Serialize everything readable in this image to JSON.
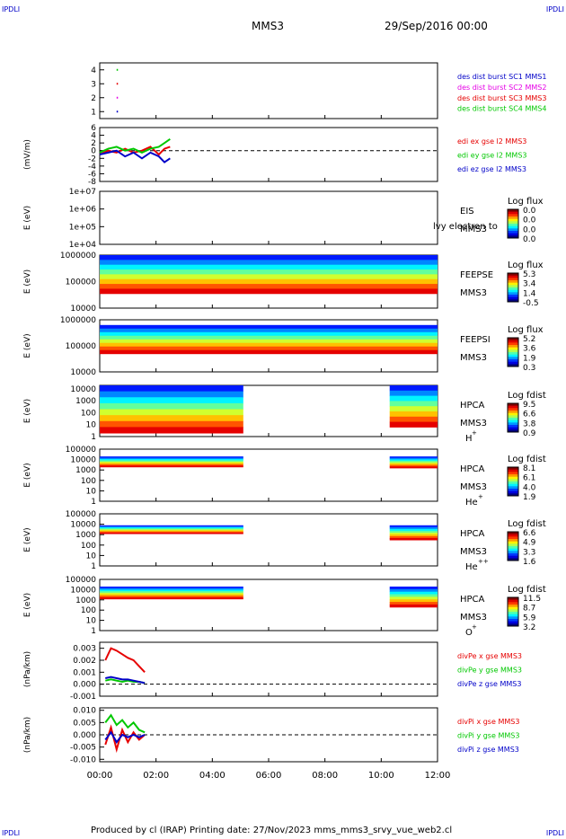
{
  "corners": {
    "top_left": "IPDLI",
    "top_right": "IPDLI",
    "bottom_left": "IPDLI",
    "bottom_right": "IPDLI"
  },
  "header": {
    "title": "MMS3",
    "date": "29/Sep/2016 00:00"
  },
  "footer": "Produced by cl (IRAP)   Printing date: 27/Nov/2023   mms_mms3_srvy_vue_web2.cl",
  "x_axis": {
    "ticks": [
      "00:00",
      "02:00",
      "04:00",
      "06:00",
      "08:00",
      "10:00",
      "12:00"
    ],
    "range_hours": [
      0,
      12
    ]
  },
  "chart_data": [
    {
      "type": "line",
      "panel": "des-dist-burst",
      "ylim": [
        0.5,
        4.5
      ],
      "yticks": [
        "4",
        "3",
        "2",
        "1"
      ],
      "ytick_values": [
        4,
        3,
        2,
        1
      ],
      "ylabel": "",
      "series": [
        {
          "name": "des dist burst SC1 MMS1",
          "color": "#0000c8",
          "x": [
            0.6
          ],
          "y": [
            1
          ]
        },
        {
          "name": "des dist burst SC2 MMS2",
          "color": "#e600e6",
          "x": [
            0.6
          ],
          "y": [
            2
          ]
        },
        {
          "name": "des dist burst SC3 MMS3",
          "color": "#e60000",
          "x": [
            0.6
          ],
          "y": [
            3
          ]
        },
        {
          "name": "des dist burst SC4 MMS4",
          "color": "#00c800",
          "x": [
            0.6
          ],
          "y": [
            4
          ]
        }
      ],
      "grid": false
    },
    {
      "type": "line",
      "panel": "edi",
      "ylabel": "(mV/m)",
      "ylim": [
        -8,
        6
      ],
      "yticks": [
        "6",
        "4",
        "2",
        "0",
        "-2",
        "-4",
        "-6",
        "-8"
      ],
      "ytick_values": [
        6,
        4,
        2,
        0,
        -2,
        -4,
        -6,
        -8
      ],
      "series": [
        {
          "name": "edi ex gse l2 MMS3",
          "color": "#e60000",
          "x": [
            0,
            0.3,
            0.6,
            0.9,
            1.2,
            1.5,
            1.8,
            2.1,
            2.3,
            2.5
          ],
          "y": [
            -1,
            0,
            -0.5,
            0.5,
            -0.5,
            0,
            1,
            -1,
            0.5,
            1
          ]
        },
        {
          "name": "edi ey gse l2 MMS3",
          "color": "#00c800",
          "x": [
            0,
            0.3,
            0.6,
            0.9,
            1.2,
            1.5,
            1.8,
            2.1,
            2.3,
            2.5
          ],
          "y": [
            -0.5,
            0.5,
            1,
            0,
            0.5,
            -0.5,
            0.5,
            1,
            2,
            3
          ]
        },
        {
          "name": "edi ez gse l2 MMS3",
          "color": "#0000c8",
          "x": [
            0,
            0.3,
            0.6,
            0.9,
            1.2,
            1.5,
            1.8,
            2.1,
            2.3,
            2.5
          ],
          "y": [
            -1,
            -0.5,
            0,
            -1.5,
            -0.5,
            -2,
            -0.5,
            -1.5,
            -3,
            -2
          ]
        }
      ],
      "reference_line": 0
    },
    {
      "type": "heatmap",
      "panel": "EIS",
      "ylabel": "E (eV)",
      "yticks": [
        "1e+07",
        "1e+06",
        "1e+05",
        "1e+04"
      ],
      "ytick_values": [
        7,
        6,
        5,
        4
      ],
      "ylim_log10": [
        4,
        7
      ],
      "right_labels": [
        "EIS",
        "MMS3"
      ],
      "overlay_text": "lvy electron to",
      "colorbar": {
        "title": "Log flux",
        "values": [
          "0.0",
          "0.0",
          "0.0",
          "0.0"
        ]
      },
      "blocks": []
    },
    {
      "type": "heatmap",
      "panel": "FEEPSE",
      "ylabel": "E (eV)",
      "yticks": [
        "1000000",
        "100000",
        "10000"
      ],
      "ytick_values": [
        6,
        5,
        4
      ],
      "ylim_log10": [
        4,
        6
      ],
      "right_labels": [
        "FEEPSE",
        "MMS3"
      ],
      "colorbar": {
        "title": "Log flux",
        "values": [
          "5.3",
          "3.4",
          "1.4",
          "-0.5"
        ]
      },
      "blocks": [
        {
          "x0": 0,
          "x1": 12,
          "e_lo": 4.55,
          "e_hi": 6.0
        }
      ]
    },
    {
      "type": "heatmap",
      "panel": "FEEPSI",
      "ylabel": "E (eV)",
      "yticks": [
        "1000000",
        "100000",
        "10000"
      ],
      "ytick_values": [
        6,
        5,
        4
      ],
      "ylim_log10": [
        4,
        6
      ],
      "right_labels": [
        "FEEPSI",
        "MMS3"
      ],
      "colorbar": {
        "title": "Log flux",
        "values": [
          "5.2",
          "3.6",
          "1.9",
          "0.3"
        ]
      },
      "blocks": [
        {
          "x0": 0,
          "x1": 12,
          "e_lo": 4.7,
          "e_hi": 5.8
        }
      ]
    },
    {
      "type": "heatmap",
      "panel": "HPCA-H+",
      "ylabel": "E (eV)",
      "yticks": [
        "10000",
        "1000",
        "100",
        "10",
        "1"
      ],
      "ytick_values": [
        4,
        3,
        2,
        1,
        0
      ],
      "ylim_log10": [
        0,
        4.3
      ],
      "right_labels": [
        "HPCA",
        "MMS3"
      ],
      "species": "H",
      "species_sup": "+",
      "colorbar": {
        "title": "Log fdist",
        "values": [
          "9.5",
          "6.6",
          "3.8",
          "0.9"
        ]
      },
      "blocks": [
        {
          "x0": 0,
          "x1": 5.1,
          "e_lo": 0.3,
          "e_hi": 4.3
        },
        {
          "x0": 10.3,
          "x1": 12,
          "e_lo": 0.8,
          "e_hi": 4.3
        }
      ]
    },
    {
      "type": "heatmap",
      "panel": "HPCA-He+",
      "ylabel": "E (eV)",
      "yticks": [
        "100000",
        "10000",
        "1000",
        "100",
        "10",
        "1"
      ],
      "ytick_values": [
        5,
        4,
        3,
        2,
        1,
        0
      ],
      "ylim_log10": [
        0,
        5
      ],
      "right_labels": [
        "HPCA",
        "MMS3"
      ],
      "species": "He",
      "species_sup": "+",
      "colorbar": {
        "title": "Log fdist",
        "values": [
          "8.1",
          "6.1",
          "4.0",
          "1.9"
        ]
      },
      "blocks": [
        {
          "x0": 0,
          "x1": 5.1,
          "e_lo": 3.3,
          "e_hi": 4.3
        },
        {
          "x0": 10.3,
          "x1": 12,
          "e_lo": 3.2,
          "e_hi": 4.3
        }
      ]
    },
    {
      "type": "heatmap",
      "panel": "HPCA-He++",
      "ylabel": "E (eV)",
      "yticks": [
        "100000",
        "10000",
        "1000",
        "100",
        "10",
        "1"
      ],
      "ytick_values": [
        5,
        4,
        3,
        2,
        1,
        0
      ],
      "ylim_log10": [
        0,
        5
      ],
      "right_labels": [
        "HPCA",
        "MMS3"
      ],
      "species": "He",
      "species_sup": "++",
      "colorbar": {
        "title": "Log fdist",
        "values": [
          "6.6",
          "4.9",
          "3.3",
          "1.6"
        ]
      },
      "blocks": [
        {
          "x0": 0,
          "x1": 5.1,
          "e_lo": 3.1,
          "e_hi": 3.9
        },
        {
          "x0": 10.3,
          "x1": 12,
          "e_lo": 2.5,
          "e_hi": 3.9
        }
      ]
    },
    {
      "type": "heatmap",
      "panel": "HPCA-O+",
      "ylabel": "E (eV)",
      "yticks": [
        "100000",
        "10000",
        "1000",
        "100",
        "10",
        "1"
      ],
      "ytick_values": [
        5,
        4,
        3,
        2,
        1,
        0
      ],
      "ylim_log10": [
        0,
        5
      ],
      "right_labels": [
        "HPCA",
        "MMS3"
      ],
      "species": "O",
      "species_sup": "+",
      "colorbar": {
        "title": "Log fdist",
        "values": [
          "11.5",
          "8.7",
          "5.9",
          "3.2"
        ]
      },
      "blocks": [
        {
          "x0": 0,
          "x1": 5.1,
          "e_lo": 3.1,
          "e_hi": 4.3
        },
        {
          "x0": 10.3,
          "x1": 12,
          "e_lo": 2.3,
          "e_hi": 4.3
        }
      ]
    },
    {
      "type": "line",
      "panel": "divPe",
      "ylabel": "(nPa/km)",
      "ylim": [
        -0.001,
        0.0035
      ],
      "yticks": [
        "0.003",
        "0.002",
        "0.001",
        "0.000",
        "-0.001"
      ],
      "ytick_values": [
        0.003,
        0.002,
        0.001,
        0,
        -0.001
      ],
      "series": [
        {
          "name": "divPe x gse MMS3",
          "color": "#e60000",
          "x": [
            0.2,
            0.4,
            0.6,
            0.8,
            1.0,
            1.2,
            1.4,
            1.6
          ],
          "y": [
            0.002,
            0.003,
            0.0028,
            0.0025,
            0.0022,
            0.002,
            0.0015,
            0.001
          ]
        },
        {
          "name": "divPe y gse MMS3",
          "color": "#00c800",
          "x": [
            0.2,
            0.4,
            0.6,
            0.8,
            1.0,
            1.2,
            1.4,
            1.6
          ],
          "y": [
            0.0003,
            0.0004,
            0.0003,
            0.0002,
            0.0003,
            0.0002,
            0.0002,
            0.0001
          ]
        },
        {
          "name": "divPe z gse MMS3",
          "color": "#0000c8",
          "x": [
            0.2,
            0.4,
            0.6,
            0.8,
            1.0,
            1.2,
            1.4,
            1.6
          ],
          "y": [
            0.0005,
            0.0006,
            0.0005,
            0.0004,
            0.0004,
            0.0003,
            0.0002,
            0.0001
          ]
        }
      ],
      "reference_line": 0
    },
    {
      "type": "line",
      "panel": "divPi",
      "ylabel": "(nPa/km)",
      "ylim": [
        -0.011,
        0.011
      ],
      "yticks": [
        "0.010",
        "0.005",
        "0.000",
        "-0.005",
        "-0.010"
      ],
      "ytick_values": [
        0.01,
        0.005,
        0,
        -0.005,
        -0.01
      ],
      "series": [
        {
          "name": "divPi x gse MMS3",
          "color": "#e60000",
          "x": [
            0.2,
            0.4,
            0.6,
            0.8,
            1.0,
            1.2,
            1.4,
            1.6
          ],
          "y": [
            -0.004,
            0.003,
            -0.006,
            0.002,
            -0.003,
            0.001,
            -0.002,
            0.0
          ]
        },
        {
          "name": "divPi y gse MMS3",
          "color": "#00c800",
          "x": [
            0.2,
            0.4,
            0.6,
            0.8,
            1.0,
            1.2,
            1.4,
            1.6
          ],
          "y": [
            0.005,
            0.008,
            0.004,
            0.006,
            0.003,
            0.005,
            0.002,
            0.001
          ]
        },
        {
          "name": "divPi z gse MMS3",
          "color": "#0000c8",
          "x": [
            0.2,
            0.4,
            0.6,
            0.8,
            1.0,
            1.2,
            1.4,
            1.6
          ],
          "y": [
            -0.002,
            0.001,
            -0.003,
            0.0,
            -0.001,
            0.0,
            -0.001,
            0.0
          ]
        }
      ],
      "reference_line": 0
    }
  ]
}
